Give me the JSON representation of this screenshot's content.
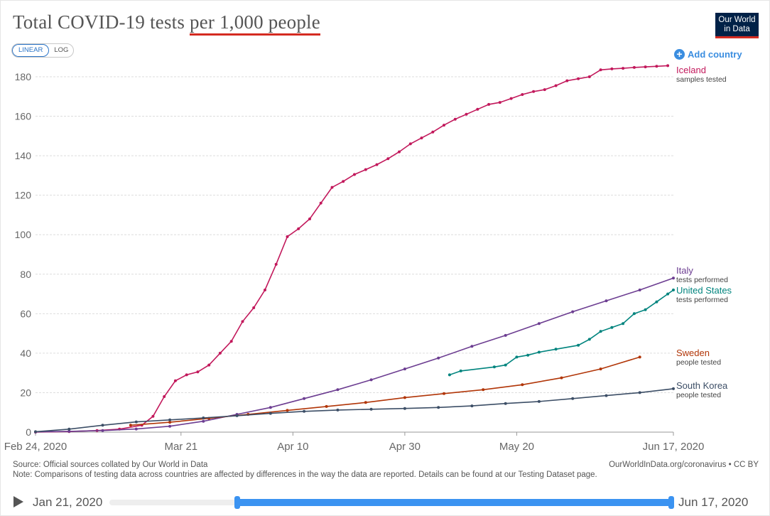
{
  "title_pre": "Total COVID-19 tests ",
  "title_highlight": "per 1,000 people",
  "logo_line1": "Our World",
  "logo_line2": "in Data",
  "scale_linear": "LINEAR",
  "scale_log": "LOG",
  "add_country": "Add country",
  "source": "Source: Official sources collated by Our World in Data",
  "note": "Note: Comparisons of testing data across countries are affected by differences in the way the data are reported. Details can be found at our Testing Dataset page.",
  "site": "OurWorldInData.org/coronavirus • CC BY",
  "timeline": {
    "start": "Jan 21, 2020",
    "end": "Jun 17, 2020"
  },
  "colors": {
    "Iceland": "#c2185b",
    "Italy": "#6c3d91",
    "United States": "#00847e",
    "Sweden": "#b13507",
    "South Korea": "#3c4e66"
  },
  "chart_data": {
    "type": "line",
    "ylim": [
      0,
      180
    ],
    "yticks": [
      0,
      20,
      40,
      60,
      80,
      100,
      120,
      140,
      160,
      180
    ],
    "xlim": [
      "2020-02-24",
      "2020-06-17"
    ],
    "xticks": [
      "Feb 24, 2020",
      "Mar 21",
      "Apr 10",
      "Apr 30",
      "May 20",
      "Jun 17, 2020"
    ],
    "series": [
      {
        "name": "Iceland",
        "sub": "samples tested",
        "points": [
          [
            "2020-02-24",
            0
          ],
          [
            "2020-03-01",
            0.3
          ],
          [
            "2020-03-06",
            0.8
          ],
          [
            "2020-03-10",
            1.5
          ],
          [
            "2020-03-14",
            3.5
          ],
          [
            "2020-03-16",
            8
          ],
          [
            "2020-03-18",
            18
          ],
          [
            "2020-03-20",
            26
          ],
          [
            "2020-03-22",
            29
          ],
          [
            "2020-03-24",
            30.5
          ],
          [
            "2020-03-26",
            34
          ],
          [
            "2020-03-28",
            40
          ],
          [
            "2020-03-30",
            46
          ],
          [
            "2020-04-01",
            56
          ],
          [
            "2020-04-03",
            63
          ],
          [
            "2020-04-05",
            72
          ],
          [
            "2020-04-07",
            85
          ],
          [
            "2020-04-09",
            99
          ],
          [
            "2020-04-11",
            103
          ],
          [
            "2020-04-13",
            108
          ],
          [
            "2020-04-15",
            116
          ],
          [
            "2020-04-17",
            124
          ],
          [
            "2020-04-19",
            127
          ],
          [
            "2020-04-21",
            130.5
          ],
          [
            "2020-04-23",
            133
          ],
          [
            "2020-04-25",
            135.5
          ],
          [
            "2020-04-27",
            138.5
          ],
          [
            "2020-04-29",
            142
          ],
          [
            "2020-05-01",
            146
          ],
          [
            "2020-05-03",
            149
          ],
          [
            "2020-05-05",
            152
          ],
          [
            "2020-05-07",
            155.5
          ],
          [
            "2020-05-09",
            158.5
          ],
          [
            "2020-05-11",
            161
          ],
          [
            "2020-05-13",
            163.5
          ],
          [
            "2020-05-15",
            166
          ],
          [
            "2020-05-17",
            167
          ],
          [
            "2020-05-19",
            169
          ],
          [
            "2020-05-21",
            171
          ],
          [
            "2020-05-23",
            172.5
          ],
          [
            "2020-05-25",
            173.5
          ],
          [
            "2020-05-27",
            175.5
          ],
          [
            "2020-05-29",
            178
          ],
          [
            "2020-05-31",
            179
          ],
          [
            "2020-06-02",
            180
          ],
          [
            "2020-06-04",
            183.5
          ],
          [
            "2020-06-06",
            184
          ],
          [
            "2020-06-08",
            184.3
          ],
          [
            "2020-06-10",
            184.7
          ],
          [
            "2020-06-12",
            185
          ],
          [
            "2020-06-14",
            185.3
          ],
          [
            "2020-06-16",
            185.6
          ]
        ]
      },
      {
        "name": "Italy",
        "sub": "tests performed",
        "points": [
          [
            "2020-02-24",
            0.1
          ],
          [
            "2020-03-01",
            0.4
          ],
          [
            "2020-03-07",
            0.8
          ],
          [
            "2020-03-13",
            1.6
          ],
          [
            "2020-03-19",
            3
          ],
          [
            "2020-03-25",
            5.5
          ],
          [
            "2020-03-31",
            9
          ],
          [
            "2020-04-06",
            12.5
          ],
          [
            "2020-04-12",
            17
          ],
          [
            "2020-04-18",
            21.5
          ],
          [
            "2020-04-24",
            26.5
          ],
          [
            "2020-04-30",
            32
          ],
          [
            "2020-05-06",
            37.5
          ],
          [
            "2020-05-12",
            43.5
          ],
          [
            "2020-05-18",
            49
          ],
          [
            "2020-05-24",
            55
          ],
          [
            "2020-05-30",
            61
          ],
          [
            "2020-06-05",
            66.5
          ],
          [
            "2020-06-11",
            72
          ],
          [
            "2020-06-17",
            78
          ]
        ]
      },
      {
        "name": "United States",
        "sub": "tests performed",
        "points": [
          [
            "2020-05-08",
            29
          ],
          [
            "2020-05-10",
            31
          ],
          [
            "2020-05-16",
            33
          ],
          [
            "2020-05-18",
            34
          ],
          [
            "2020-05-20",
            38
          ],
          [
            "2020-05-22",
            39
          ],
          [
            "2020-05-24",
            40.5
          ],
          [
            "2020-05-27",
            42
          ],
          [
            "2020-05-31",
            44
          ],
          [
            "2020-06-02",
            47
          ],
          [
            "2020-06-04",
            51
          ],
          [
            "2020-06-06",
            53
          ],
          [
            "2020-06-08",
            55
          ],
          [
            "2020-06-10",
            60
          ],
          [
            "2020-06-12",
            62
          ],
          [
            "2020-06-14",
            66
          ],
          [
            "2020-06-16",
            70
          ],
          [
            "2020-06-17",
            72
          ]
        ]
      },
      {
        "name": "Sweden",
        "sub": "people tested",
        "points": [
          [
            "2020-03-12",
            3.5
          ],
          [
            "2020-03-19",
            5
          ],
          [
            "2020-03-26",
            7
          ],
          [
            "2020-04-02",
            9
          ],
          [
            "2020-04-09",
            11
          ],
          [
            "2020-04-16",
            13
          ],
          [
            "2020-04-23",
            15
          ],
          [
            "2020-04-30",
            17.5
          ],
          [
            "2020-05-07",
            19.5
          ],
          [
            "2020-05-14",
            21.5
          ],
          [
            "2020-05-21",
            24
          ],
          [
            "2020-05-28",
            27.5
          ],
          [
            "2020-06-04",
            32
          ],
          [
            "2020-06-11",
            38
          ]
        ]
      },
      {
        "name": "South Korea",
        "sub": "people tested",
        "points": [
          [
            "2020-02-24",
            0.2
          ],
          [
            "2020-03-01",
            1.5
          ],
          [
            "2020-03-07",
            3.5
          ],
          [
            "2020-03-13",
            5.2
          ],
          [
            "2020-03-19",
            6.2
          ],
          [
            "2020-03-25",
            7.2
          ],
          [
            "2020-03-31",
            8.3
          ],
          [
            "2020-04-06",
            9.5
          ],
          [
            "2020-04-12",
            10.5
          ],
          [
            "2020-04-18",
            11.2
          ],
          [
            "2020-04-24",
            11.6
          ],
          [
            "2020-04-30",
            12
          ],
          [
            "2020-05-06",
            12.5
          ],
          [
            "2020-05-12",
            13.3
          ],
          [
            "2020-05-18",
            14.5
          ],
          [
            "2020-05-24",
            15.5
          ],
          [
            "2020-05-30",
            17
          ],
          [
            "2020-06-05",
            18.5
          ],
          [
            "2020-06-11",
            20
          ],
          [
            "2020-06-17",
            22
          ]
        ]
      }
    ]
  }
}
